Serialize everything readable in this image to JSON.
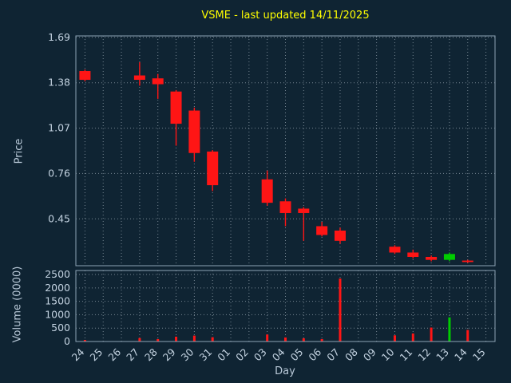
{
  "title": "VSME - last updated 14/11/2025",
  "colors": {
    "background": "#0f2433",
    "title": "#ffff00",
    "tick_text": "#c3d2e0",
    "axis_title_text": "#b9c9d8",
    "grid": "#c9d5df",
    "panel_border": "#8ea4b6",
    "candle_up": "#00cc00",
    "candle_down": "#ff1515"
  },
  "chart_data": {
    "type": "candlestick",
    "title": "VSME - last updated 14/11/2025",
    "xlabel": "Day",
    "legend": "none",
    "grid": "dotted",
    "price_axis": {
      "label": "Price",
      "ticks": [
        1.69,
        1.38,
        1.07,
        0.76,
        0.45
      ],
      "ylim": [
        0.13,
        1.7
      ]
    },
    "volume_axis": {
      "label": "Volume (0000)",
      "ticks": [
        2500,
        2000,
        1500,
        1000,
        500,
        0
      ],
      "ylim": [
        0,
        2650
      ]
    },
    "categories": [
      "24",
      "25",
      "26",
      "27",
      "28",
      "29",
      "30",
      "31",
      "01",
      "02",
      "03",
      "04",
      "05",
      "06",
      "07",
      "08",
      "09",
      "10",
      "11",
      "12",
      "13",
      "14",
      "15"
    ],
    "candles": [
      {
        "day": "24",
        "open": 1.46,
        "high": 1.47,
        "low": 1.39,
        "close": 1.4,
        "volume": 60
      },
      {
        "day": "27",
        "open": 1.43,
        "high": 1.52,
        "low": 1.36,
        "close": 1.4,
        "volume": 130
      },
      {
        "day": "28",
        "open": 1.41,
        "high": 1.44,
        "low": 1.27,
        "close": 1.37,
        "volume": 90
      },
      {
        "day": "29",
        "open": 1.32,
        "high": 1.33,
        "low": 0.95,
        "close": 1.1,
        "volume": 180
      },
      {
        "day": "30",
        "open": 1.19,
        "high": 1.21,
        "low": 0.84,
        "close": 0.9,
        "volume": 220
      },
      {
        "day": "31",
        "open": 0.91,
        "high": 0.92,
        "low": 0.64,
        "close": 0.68,
        "volume": 160
      },
      {
        "day": "03",
        "open": 0.72,
        "high": 0.78,
        "low": 0.54,
        "close": 0.56,
        "volume": 260
      },
      {
        "day": "04",
        "open": 0.57,
        "high": 0.59,
        "low": 0.4,
        "close": 0.49,
        "volume": 150
      },
      {
        "day": "05",
        "open": 0.52,
        "high": 0.53,
        "low": 0.3,
        "close": 0.49,
        "volume": 120
      },
      {
        "day": "06",
        "open": 0.4,
        "high": 0.43,
        "low": 0.33,
        "close": 0.34,
        "volume": 90
      },
      {
        "day": "07",
        "open": 0.37,
        "high": 0.39,
        "low": 0.28,
        "close": 0.3,
        "volume": 2350
      },
      {
        "day": "10",
        "open": 0.26,
        "high": 0.27,
        "low": 0.21,
        "close": 0.22,
        "volume": 230
      },
      {
        "day": "11",
        "open": 0.22,
        "high": 0.24,
        "low": 0.18,
        "close": 0.19,
        "volume": 300
      },
      {
        "day": "12",
        "open": 0.19,
        "high": 0.2,
        "low": 0.16,
        "close": 0.17,
        "volume": 520
      },
      {
        "day": "13",
        "open": 0.17,
        "high": 0.22,
        "low": 0.16,
        "close": 0.21,
        "volume": 900
      },
      {
        "day": "14",
        "open": 0.165,
        "high": 0.17,
        "low": 0.15,
        "close": 0.155,
        "volume": 430
      }
    ]
  }
}
